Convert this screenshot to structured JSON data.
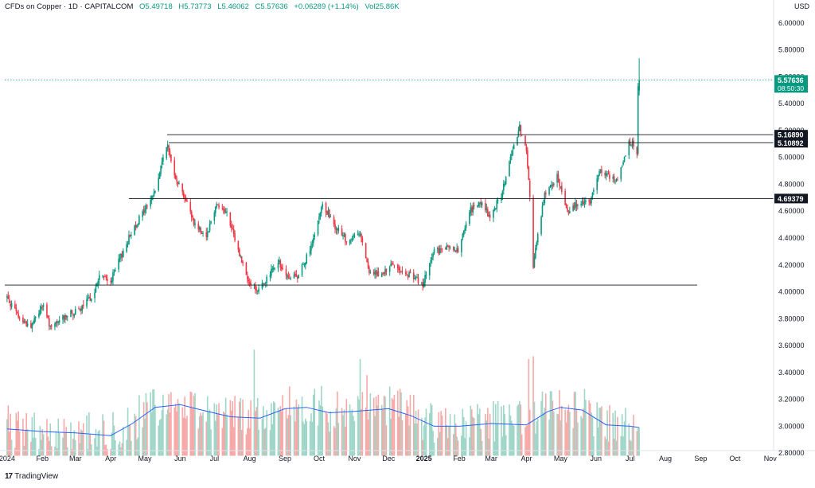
{
  "header": {
    "symbol": "CFDs on Copper · 1D · CAPITALCOM",
    "open": "O5.49718",
    "high": "H5.73773",
    "low": "L5.46062",
    "close": "C5.57636",
    "change": "+0.06289 (+1.14%)",
    "volume": "Vol25.86K"
  },
  "currency": "USD",
  "brand": "TradingView",
  "colors": {
    "up": "#089981",
    "down": "#f23645",
    "volume_ma": "#2962ff",
    "up_volume": "#9fd6c8",
    "down_volume": "#f7a9a8"
  },
  "chart_data": {
    "type": "candlestick",
    "x_ticks": [
      "2024",
      "Feb",
      "Mar",
      "Apr",
      "May",
      "Jun",
      "Jul",
      "Aug",
      "Sep",
      "Oct",
      "Nov",
      "Dec",
      "2025",
      "Feb",
      "Mar",
      "Apr",
      "May",
      "Jun",
      "Jul",
      "Aug",
      "Sep",
      "Oct",
      "Nov"
    ],
    "y_ticks": [
      "2.80000",
      "3.00000",
      "3.20000",
      "3.40000",
      "3.60000",
      "3.80000",
      "4.00000",
      "4.20000",
      "4.40000",
      "4.60000",
      "4.80000",
      "5.00000",
      "5.20000",
      "5.40000",
      "5.60000",
      "5.80000",
      "6.00000"
    ],
    "ylim": [
      2.7,
      6.1
    ],
    "price_path": [
      [
        "2024-01-01",
        3.96
      ],
      [
        "2024-01-12",
        3.8
      ],
      [
        "2024-01-22",
        3.74
      ],
      [
        "2024-02-01",
        3.9
      ],
      [
        "2024-02-09",
        3.72
      ],
      [
        "2024-02-20",
        3.82
      ],
      [
        "2024-03-05",
        3.86
      ],
      [
        "2024-03-18",
        4.0
      ],
      [
        "2024-03-22",
        4.12
      ],
      [
        "2024-04-01",
        4.08
      ],
      [
        "2024-04-10",
        4.26
      ],
      [
        "2024-04-20",
        4.46
      ],
      [
        "2024-04-30",
        4.6
      ],
      [
        "2024-05-10",
        4.75
      ],
      [
        "2024-05-20",
        5.1
      ],
      [
        "2024-05-28",
        4.86
      ],
      [
        "2024-06-05",
        4.7
      ],
      [
        "2024-06-14",
        4.5
      ],
      [
        "2024-06-24",
        4.42
      ],
      [
        "2024-07-03",
        4.66
      ],
      [
        "2024-07-12",
        4.58
      ],
      [
        "2024-07-20",
        4.36
      ],
      [
        "2024-07-30",
        4.1
      ],
      [
        "2024-08-07",
        4.01
      ],
      [
        "2024-08-16",
        4.1
      ],
      [
        "2024-08-26",
        4.22
      ],
      [
        "2024-09-05",
        4.1
      ],
      [
        "2024-09-13",
        4.12
      ],
      [
        "2024-09-25",
        4.36
      ],
      [
        "2024-10-04",
        4.66
      ],
      [
        "2024-10-14",
        4.5
      ],
      [
        "2024-10-25",
        4.38
      ],
      [
        "2024-11-06",
        4.44
      ],
      [
        "2024-11-14",
        4.16
      ],
      [
        "2024-11-25",
        4.12
      ],
      [
        "2024-12-05",
        4.2
      ],
      [
        "2024-12-16",
        4.14
      ],
      [
        "2024-12-31",
        4.06
      ],
      [
        "2025-01-10",
        4.3
      ],
      [
        "2025-01-21",
        4.32
      ],
      [
        "2025-01-31",
        4.3
      ],
      [
        "2025-02-10",
        4.6
      ],
      [
        "2025-02-20",
        4.66
      ],
      [
        "2025-02-28",
        4.56
      ],
      [
        "2025-03-10",
        4.72
      ],
      [
        "2025-03-20",
        5.06
      ],
      [
        "2025-03-26",
        5.22
      ],
      [
        "2025-04-01",
        5.06
      ],
      [
        "2025-04-04",
        4.7
      ],
      [
        "2025-04-07",
        4.18
      ],
      [
        "2025-04-10",
        4.38
      ],
      [
        "2025-04-17",
        4.72
      ],
      [
        "2025-04-28",
        4.86
      ],
      [
        "2025-05-07",
        4.6
      ],
      [
        "2025-05-16",
        4.66
      ],
      [
        "2025-05-27",
        4.66
      ],
      [
        "2025-06-04",
        4.92
      ],
      [
        "2025-06-12",
        4.86
      ],
      [
        "2025-06-20",
        4.82
      ],
      [
        "2025-06-30",
        5.1
      ],
      [
        "2025-07-03",
        5.12
      ],
      [
        "2025-07-07",
        5.02
      ],
      [
        "2025-07-08",
        5.52
      ],
      [
        "2025-07-09",
        5.57636
      ]
    ],
    "levels": [
      {
        "value": 5.1689,
        "label": "5.16890"
      },
      {
        "value": 5.10892,
        "label": "5.10892"
      },
      {
        "value": 4.69379,
        "label": "4.69379"
      },
      {
        "value": 4.05,
        "label": ""
      }
    ],
    "last_price": {
      "value": 5.57636,
      "label": "5.57636",
      "countdown": "08:50:30"
    },
    "volume_ma_path": [
      [
        "2024-01-01",
        2.98
      ],
      [
        "2024-02-01",
        2.96
      ],
      [
        "2024-03-01",
        2.95
      ],
      [
        "2024-04-01",
        2.93
      ],
      [
        "2024-04-20",
        3.02
      ],
      [
        "2024-05-10",
        3.14
      ],
      [
        "2024-06-01",
        3.16
      ],
      [
        "2024-06-20",
        3.12
      ],
      [
        "2024-07-15",
        3.07
      ],
      [
        "2024-08-10",
        3.06
      ],
      [
        "2024-09-01",
        3.13
      ],
      [
        "2024-09-20",
        3.14
      ],
      [
        "2024-10-10",
        3.1
      ],
      [
        "2024-11-01",
        3.11
      ],
      [
        "2024-12-01",
        3.13
      ],
      [
        "2024-12-20",
        3.08
      ],
      [
        "2025-01-10",
        3.0
      ],
      [
        "2025-02-01",
        3.0
      ],
      [
        "2025-03-01",
        3.02
      ],
      [
        "2025-04-01",
        3.01
      ],
      [
        "2025-04-20",
        3.11
      ],
      [
        "2025-05-01",
        3.14
      ],
      [
        "2025-05-20",
        3.12
      ],
      [
        "2025-06-10",
        3.01
      ],
      [
        "2025-07-01",
        3.0
      ],
      [
        "2025-07-09",
        2.99
      ]
    ],
    "volume_band": [
      2.78,
      3.57
    ],
    "volume_spikes": [
      [
        "2024-05-05",
        3.38
      ],
      [
        "2024-08-05",
        3.57
      ],
      [
        "2024-10-03",
        3.3
      ],
      [
        "2024-11-06",
        3.5
      ],
      [
        "2024-11-12",
        3.38
      ],
      [
        "2025-04-03",
        3.5
      ],
      [
        "2025-04-07",
        3.52
      ],
      [
        "2025-04-12",
        3.3
      ]
    ]
  }
}
